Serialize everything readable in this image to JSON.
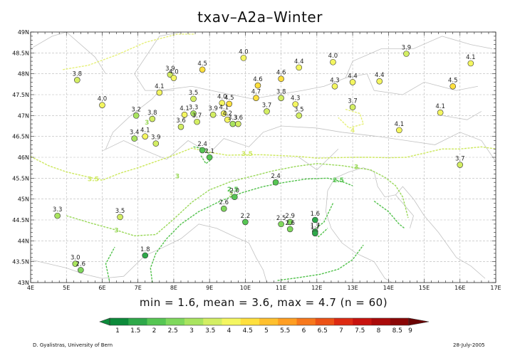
{
  "title": "txav–A2a–Winter",
  "stats_text": "min = 1.6, mean = 3.6, max = 4.7 (n = 60)",
  "credit": "D. Gyalistras, University of Bern",
  "date": "28-July-2005",
  "map": {
    "lon_range": [
      4,
      17
    ],
    "lat_range": [
      43,
      49
    ],
    "grid": true,
    "x_tick_labels": [
      "4E",
      "5E",
      "6E",
      "7E",
      "8E",
      "9E",
      "10E",
      "11E",
      "12E",
      "13E",
      "14E",
      "15E",
      "16E",
      "17E"
    ],
    "y_tick_labels": [
      "43N",
      "43.5N",
      "44N",
      "44.5N",
      "45N",
      "45.5N",
      "46N",
      "46.5N",
      "47N",
      "47.5N",
      "48N",
      "48.5N",
      "49N"
    ],
    "contours": [
      {
        "label": "4",
        "color": "#e6f07a",
        "lines": [
          [
            [
              4.9,
              48.1
            ],
            [
              5.6,
              48.2
            ],
            [
              6.4,
              48.45
            ],
            [
              7.2,
              48.75
            ],
            [
              8.1,
              48.95
            ],
            [
              8.6,
              48.95
            ]
          ],
          [
            [
              12.8,
              47.15
            ],
            [
              13.2,
              47.05
            ],
            [
              13.3,
              46.8
            ],
            [
              12.9,
              46.7
            ],
            [
              12.6,
              46.95
            ]
          ]
        ]
      },
      {
        "label": "3.5",
        "color": "#cde85e",
        "lines": [
          [
            [
              4.0,
              46.02
            ],
            [
              4.5,
              45.8
            ],
            [
              5.0,
              45.65
            ],
            [
              5.5,
              45.55
            ],
            [
              6.0,
              45.45
            ],
            [
              6.5,
              45.62
            ],
            [
              7.0,
              45.75
            ],
            [
              7.5,
              45.9
            ],
            [
              8.0,
              46.05
            ],
            [
              8.5,
              46.22
            ],
            [
              9.0,
              46.12
            ],
            [
              9.5,
              46.05
            ],
            [
              10.0,
              46.06
            ],
            [
              10.5,
              46.06
            ],
            [
              11.0,
              46.04
            ],
            [
              11.5,
              46.02
            ],
            [
              12.0,
              45.98
            ],
            [
              12.5,
              45.99
            ],
            [
              13.0,
              46.0
            ],
            [
              13.5,
              46.0
            ],
            [
              14.0,
              45.99
            ],
            [
              14.5,
              46.0
            ],
            [
              15.0,
              46.1
            ],
            [
              15.5,
              46.2
            ],
            [
              16.0,
              46.2
            ],
            [
              16.6,
              46.25
            ],
            [
              17.0,
              46.2
            ]
          ]
        ]
      },
      {
        "label": "3",
        "color": "#9ad85a",
        "lines": [
          [
            [
              5.0,
              44.6
            ],
            [
              5.7,
              44.42
            ],
            [
              6.3,
              44.28
            ],
            [
              6.9,
              44.12
            ],
            [
              7.5,
              44.15
            ],
            [
              8.0,
              44.52
            ],
            [
              8.5,
              44.92
            ],
            [
              9.0,
              45.22
            ],
            [
              9.6,
              45.42
            ],
            [
              10.2,
              45.55
            ],
            [
              10.8,
              45.68
            ],
            [
              11.4,
              45.78
            ],
            [
              12.0,
              45.85
            ],
            [
              12.7,
              45.8
            ],
            [
              13.1,
              45.75
            ],
            [
              13.5,
              45.7
            ],
            [
              13.9,
              45.52
            ],
            [
              14.2,
              45.32
            ],
            [
              14.4,
              45.05
            ],
            [
              14.55,
              44.55
            ]
          ]
        ]
      },
      {
        "label": "2.5",
        "color": "#52c24c",
        "lines": [
          [
            [
              7.4,
              43.0
            ],
            [
              7.35,
              43.35
            ],
            [
              7.5,
              43.7
            ],
            [
              7.8,
              44.05
            ],
            [
              8.2,
              44.4
            ],
            [
              8.7,
              44.7
            ],
            [
              9.3,
              44.95
            ],
            [
              9.9,
              45.15
            ],
            [
              10.5,
              45.3
            ],
            [
              11.1,
              45.4
            ],
            [
              11.7,
              45.48
            ],
            [
              12.3,
              45.5
            ],
            [
              12.7,
              45.42
            ],
            [
              13.0,
              45.32
            ]
          ],
          [
            [
              13.6,
              44.95
            ],
            [
              14.0,
              44.7
            ],
            [
              14.3,
              44.4
            ],
            [
              14.45,
              44.3
            ]
          ],
          [
            [
              8.55,
              46.25
            ],
            [
              8.9,
              46.2
            ],
            [
              9.05,
              45.95
            ],
            [
              8.9,
              45.85
            ],
            [
              8.75,
              46.05
            ]
          ],
          [
            [
              12.45,
              44.9
            ],
            [
              12.2,
              44.45
            ],
            [
              11.9,
              44.25
            ],
            [
              12.05,
              44.1
            ],
            [
              12.3,
              44.3
            ]
          ],
          [
            [
              6.2,
              43.05
            ],
            [
              6.1,
              43.45
            ],
            [
              6.35,
              43.85
            ]
          ],
          [
            [
              10.9,
              43.05
            ],
            [
              11.5,
              43.12
            ],
            [
              12.1,
              43.2
            ],
            [
              12.6,
              43.32
            ],
            [
              13.0,
              43.55
            ],
            [
              13.3,
              43.9
            ]
          ]
        ]
      }
    ],
    "stations": [
      {
        "lon": 5.3,
        "lat": 47.85,
        "value": 3.8
      },
      {
        "lon": 6.0,
        "lat": 47.25,
        "value": 4.0
      },
      {
        "lon": 7.9,
        "lat": 47.98,
        "value": 3.9
      },
      {
        "lon": 8.0,
        "lat": 47.9,
        "value": 4.0
      },
      {
        "lon": 7.6,
        "lat": 47.55,
        "value": 4.1
      },
      {
        "lon": 8.8,
        "lat": 48.1,
        "value": 4.5
      },
      {
        "lon": 9.95,
        "lat": 48.38,
        "value": 4.0
      },
      {
        "lon": 10.35,
        "lat": 47.72,
        "value": 4.6
      },
      {
        "lon": 11.0,
        "lat": 47.88,
        "value": 4.6
      },
      {
        "lon": 11.5,
        "lat": 48.15,
        "value": 4.4
      },
      {
        "lon": 12.5,
        "lat": 47.7,
        "value": 4.3
      },
      {
        "lon": 12.45,
        "lat": 48.28,
        "value": 4.0
      },
      {
        "lon": 13.0,
        "lat": 47.8,
        "value": 4.4
      },
      {
        "lon": 13.75,
        "lat": 47.82,
        "value": 4.4
      },
      {
        "lon": 14.5,
        "lat": 48.48,
        "value": 3.9
      },
      {
        "lon": 16.3,
        "lat": 48.25,
        "value": 4.1
      },
      {
        "lon": 15.8,
        "lat": 47.7,
        "value": 4.5
      },
      {
        "lon": 8.55,
        "lat": 47.4,
        "value": 3.5
      },
      {
        "lon": 8.55,
        "lat": 47.05,
        "value": 3.3
      },
      {
        "lon": 9.35,
        "lat": 47.3,
        "value": 4.0
      },
      {
        "lon": 9.55,
        "lat": 47.28,
        "value": 4.5
      },
      {
        "lon": 10.3,
        "lat": 47.42,
        "value": 4.7
      },
      {
        "lon": 11.0,
        "lat": 47.42,
        "value": 3.8
      },
      {
        "lon": 11.4,
        "lat": 47.27,
        "value": 4.3
      },
      {
        "lon": 9.4,
        "lat": 47.05,
        "value": 4.1
      },
      {
        "lon": 9.5,
        "lat": 46.9,
        "value": 4.2
      },
      {
        "lon": 9.65,
        "lat": 46.8,
        "value": 3.3
      },
      {
        "lon": 9.8,
        "lat": 46.8,
        "value": 3.6
      },
      {
        "lon": 10.6,
        "lat": 47.1,
        "value": 3.7
      },
      {
        "lon": 11.5,
        "lat": 47.0,
        "value": 3.5
      },
      {
        "lon": 9.1,
        "lat": 47.02,
        "value": 3.9
      },
      {
        "lon": 6.95,
        "lat": 47.0,
        "value": 3.2
      },
      {
        "lon": 7.4,
        "lat": 46.92,
        "value": 3.8
      },
      {
        "lon": 8.3,
        "lat": 47.02,
        "value": 4.1
      },
      {
        "lon": 8.2,
        "lat": 46.73,
        "value": 3.6
      },
      {
        "lon": 8.65,
        "lat": 46.85,
        "value": 3.7
      },
      {
        "lon": 13.0,
        "lat": 47.2,
        "value": 3.7
      },
      {
        "lon": 14.3,
        "lat": 46.65,
        "value": 4.1
      },
      {
        "lon": 15.45,
        "lat": 47.07,
        "value": 4.1
      },
      {
        "lon": 16.0,
        "lat": 45.82,
        "value": 3.7
      },
      {
        "lon": 6.9,
        "lat": 46.45,
        "value": 3.4
      },
      {
        "lon": 7.2,
        "lat": 46.5,
        "value": 4.1
      },
      {
        "lon": 7.5,
        "lat": 46.33,
        "value": 3.9
      },
      {
        "lon": 8.8,
        "lat": 46.17,
        "value": 2.4
      },
      {
        "lon": 9.0,
        "lat": 46.0,
        "value": 2.1
      },
      {
        "lon": 10.85,
        "lat": 45.4,
        "value": 2.4
      },
      {
        "lon": 9.7,
        "lat": 45.05,
        "value": 2.0
      },
      {
        "lon": 9.4,
        "lat": 44.77,
        "value": 2.6
      },
      {
        "lon": 10.0,
        "lat": 44.45,
        "value": 2.2
      },
      {
        "lon": 11.0,
        "lat": 44.4,
        "value": 2.5
      },
      {
        "lon": 11.25,
        "lat": 44.45,
        "value": 2.9
      },
      {
        "lon": 11.25,
        "lat": 44.28,
        "value": 2.6
      },
      {
        "lon": 11.95,
        "lat": 44.5,
        "value": 1.6
      },
      {
        "lon": 11.95,
        "lat": 44.22,
        "value": 1.7
      },
      {
        "lon": 11.95,
        "lat": 44.18,
        "value": 1.7
      },
      {
        "lon": 4.75,
        "lat": 44.6,
        "value": 3.3
      },
      {
        "lon": 6.5,
        "lat": 44.57,
        "value": 3.5
      },
      {
        "lon": 7.2,
        "lat": 43.65,
        "value": 1.8
      },
      {
        "lon": 5.25,
        "lat": 43.45,
        "value": 3.0
      },
      {
        "lon": 5.4,
        "lat": 43.3,
        "value": 2.6
      }
    ]
  },
  "colorbar": {
    "labels": [
      "1",
      "1.5",
      "2",
      "2.5",
      "3",
      "3.5",
      "4",
      "4.5",
      "5",
      "5.5",
      "6",
      "6.5",
      "7",
      "7.5",
      "8",
      "8.5",
      "9"
    ],
    "colors": [
      "#0c8a3a",
      "#2ea84a",
      "#56c653",
      "#7fd85c",
      "#a9e45f",
      "#d3ee63",
      "#f4f660",
      "#ffe03e",
      "#ffc02e",
      "#ff9e22",
      "#f7781c",
      "#ec5216",
      "#dd2a12",
      "#c8120e",
      "#aa0a0a",
      "#8a0606",
      "#6a0303"
    ]
  }
}
